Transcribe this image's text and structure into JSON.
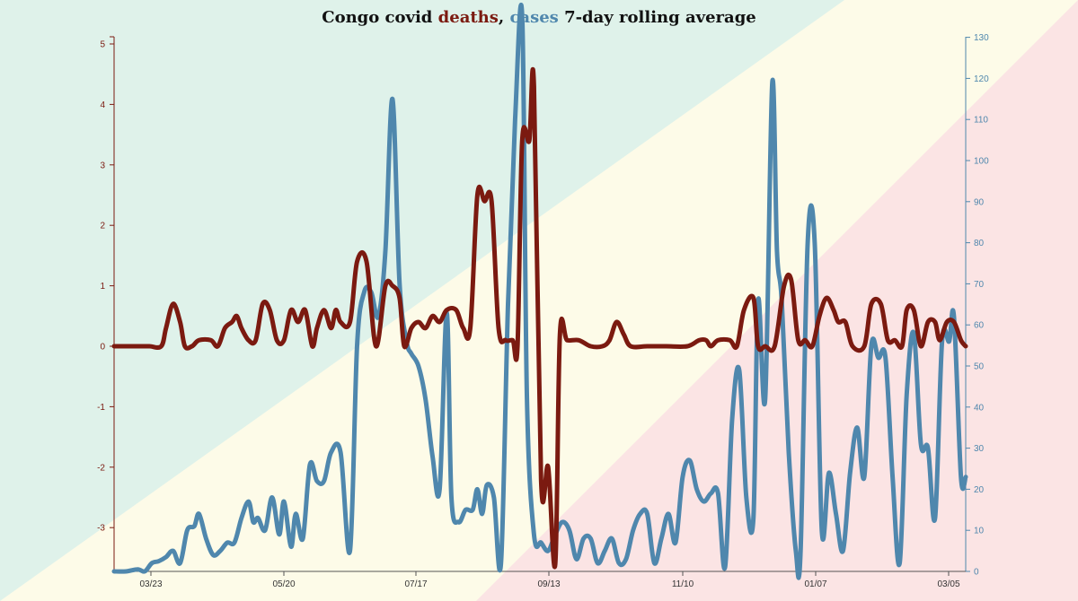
{
  "colors": {
    "deaths": "#7b1a10",
    "cases": "#4f87ad",
    "title": "#111111",
    "bg_green": "#dff2ea",
    "bg_yellow": "#fdfbe8",
    "bg_pink": "#fbe4e4"
  },
  "chart_data": {
    "type": "line",
    "title_parts": [
      {
        "text": "Congo covid ",
        "color": "#111111"
      },
      {
        "text": "deaths",
        "color": "#7b1a10"
      },
      {
        "text": ", ",
        "color": "#111111"
      },
      {
        "text": "cases",
        "color": "#4f87ad"
      },
      {
        "text": " 7-day rolling average",
        "color": "#111111"
      }
    ],
    "x_ticks": [
      "03/23",
      "05/20",
      "07/17",
      "09/13",
      "11/10",
      "01/07",
      "03/05"
    ],
    "x_range": [
      "2020-03-12",
      "2021-03-08"
    ],
    "y_left": {
      "range": [
        -3.75,
        5.1
      ],
      "ticks": [
        "-3",
        "-2",
        "-1",
        "0",
        "1",
        "2",
        "3",
        "4",
        "5"
      ]
    },
    "y_right": {
      "range": [
        0,
        130
      ],
      "ticks": [
        "0",
        "10",
        "20",
        "30",
        "40",
        "50",
        "60",
        "70",
        "80",
        "90",
        "100",
        "110",
        "120",
        "130"
      ]
    },
    "series": [
      {
        "name": "deaths",
        "axis": "left",
        "color": "#7b1a10",
        "points": [
          [
            "2020-03-12",
            0
          ],
          [
            "2020-03-17",
            0
          ],
          [
            "2020-03-22",
            0
          ],
          [
            "2020-03-27",
            0
          ],
          [
            "2020-04-01",
            0
          ],
          [
            "2020-04-03",
            0.3
          ],
          [
            "2020-04-06",
            0.7
          ],
          [
            "2020-04-09",
            0.4
          ],
          [
            "2020-04-11",
            0
          ],
          [
            "2020-04-14",
            0
          ],
          [
            "2020-04-17",
            0.1
          ],
          [
            "2020-04-22",
            0.1
          ],
          [
            "2020-04-25",
            0
          ],
          [
            "2020-04-28",
            0.3
          ],
          [
            "2020-05-01",
            0.4
          ],
          [
            "2020-05-03",
            0.5
          ],
          [
            "2020-05-05",
            0.3
          ],
          [
            "2020-05-08",
            0.1
          ],
          [
            "2020-05-11",
            0.1
          ],
          [
            "2020-05-14",
            0.7
          ],
          [
            "2020-05-17",
            0.6
          ],
          [
            "2020-05-20",
            0.1
          ],
          [
            "2020-05-23",
            0.1
          ],
          [
            "2020-05-26",
            0.6
          ],
          [
            "2020-05-29",
            0.4
          ],
          [
            "2020-06-01",
            0.6
          ],
          [
            "2020-06-04",
            0
          ],
          [
            "2020-06-06",
            0.3
          ],
          [
            "2020-06-09",
            0.6
          ],
          [
            "2020-06-12",
            0.3
          ],
          [
            "2020-06-14",
            0.6
          ],
          [
            "2020-06-16",
            0.4
          ],
          [
            "2020-06-20",
            0.4
          ],
          [
            "2020-06-23",
            1.4
          ],
          [
            "2020-06-27",
            1.4
          ],
          [
            "2020-07-01",
            0
          ],
          [
            "2020-07-05",
            1.0
          ],
          [
            "2020-07-08",
            1.0
          ],
          [
            "2020-07-11",
            0.8
          ],
          [
            "2020-07-13",
            0
          ],
          [
            "2020-07-16",
            0.3
          ],
          [
            "2020-07-19",
            0.4
          ],
          [
            "2020-07-22",
            0.3
          ],
          [
            "2020-07-25",
            0.5
          ],
          [
            "2020-07-28",
            0.4
          ],
          [
            "2020-07-31",
            0.6
          ],
          [
            "2020-08-04",
            0.6
          ],
          [
            "2020-08-07",
            0.3
          ],
          [
            "2020-08-10",
            0.3
          ],
          [
            "2020-08-13",
            2.5
          ],
          [
            "2020-08-16",
            2.4
          ],
          [
            "2020-08-19",
            2.4
          ],
          [
            "2020-08-22",
            0.3
          ],
          [
            "2020-08-25",
            0.1
          ],
          [
            "2020-08-28",
            0.1
          ],
          [
            "2020-08-30",
            0
          ],
          [
            "2020-09-01",
            3.4
          ],
          [
            "2020-09-04",
            3.4
          ],
          [
            "2020-09-06",
            4.3
          ],
          [
            "2020-09-09",
            -2.2
          ],
          [
            "2020-09-12",
            -2.0
          ],
          [
            "2020-09-15",
            -3.6
          ],
          [
            "2020-09-17",
            0.2
          ],
          [
            "2020-09-20",
            0.1
          ],
          [
            "2020-09-25",
            0.1
          ],
          [
            "2020-09-30",
            0
          ],
          [
            "2020-10-05",
            0
          ],
          [
            "2020-10-08",
            0.1
          ],
          [
            "2020-10-11",
            0.4
          ],
          [
            "2020-10-14",
            0.2
          ],
          [
            "2020-10-17",
            0
          ],
          [
            "2020-10-24",
            0
          ],
          [
            "2020-11-01",
            0
          ],
          [
            "2020-11-10",
            0
          ],
          [
            "2020-11-15",
            0.1
          ],
          [
            "2020-11-18",
            0.1
          ],
          [
            "2020-11-20",
            0
          ],
          [
            "2020-11-23",
            0.1
          ],
          [
            "2020-11-28",
            0.1
          ],
          [
            "2020-12-01",
            0
          ],
          [
            "2020-12-04",
            0.6
          ],
          [
            "2020-12-08",
            0.8
          ],
          [
            "2020-12-10",
            0
          ],
          [
            "2020-12-13",
            0
          ],
          [
            "2020-12-17",
            0
          ],
          [
            "2020-12-21",
            1.0
          ],
          [
            "2020-12-24",
            1.1
          ],
          [
            "2020-12-27",
            0.1
          ],
          [
            "2020-12-30",
            0.1
          ],
          [
            "2021-01-02",
            0
          ],
          [
            "2021-01-05",
            0.5
          ],
          [
            "2021-01-08",
            0.8
          ],
          [
            "2021-01-11",
            0.6
          ],
          [
            "2021-01-13",
            0.4
          ],
          [
            "2021-01-16",
            0.4
          ],
          [
            "2021-01-19",
            0
          ],
          [
            "2021-01-24",
            0
          ],
          [
            "2021-01-27",
            0.7
          ],
          [
            "2021-01-31",
            0.7
          ],
          [
            "2021-02-03",
            0.1
          ],
          [
            "2021-02-06",
            0.1
          ],
          [
            "2021-02-09",
            0
          ],
          [
            "2021-02-11",
            0.6
          ],
          [
            "2021-02-14",
            0.6
          ],
          [
            "2021-02-17",
            0
          ],
          [
            "2021-02-20",
            0.4
          ],
          [
            "2021-02-23",
            0.4
          ],
          [
            "2021-02-25",
            0.1
          ],
          [
            "2021-02-28",
            0.4
          ],
          [
            "2021-03-03",
            0.4
          ],
          [
            "2021-03-06",
            0.1
          ],
          [
            "2021-03-08",
            0
          ]
        ]
      },
      {
        "name": "cases",
        "axis": "right",
        "color": "#4f87ad",
        "points": [
          [
            "2020-03-12",
            0
          ],
          [
            "2020-03-17",
            0
          ],
          [
            "2020-03-22",
            0.5
          ],
          [
            "2020-03-25",
            0
          ],
          [
            "2020-03-28",
            2
          ],
          [
            "2020-03-31",
            2.5
          ],
          [
            "2020-04-03",
            3.5
          ],
          [
            "2020-04-06",
            5
          ],
          [
            "2020-04-09",
            2
          ],
          [
            "2020-04-12",
            10
          ],
          [
            "2020-04-15",
            11
          ],
          [
            "2020-04-17",
            14
          ],
          [
            "2020-04-20",
            8
          ],
          [
            "2020-04-23",
            4
          ],
          [
            "2020-04-26",
            5
          ],
          [
            "2020-04-29",
            7
          ],
          [
            "2020-05-02",
            7
          ],
          [
            "2020-05-05",
            13
          ],
          [
            "2020-05-08",
            17
          ],
          [
            "2020-05-10",
            12
          ],
          [
            "2020-05-12",
            13
          ],
          [
            "2020-05-15",
            10
          ],
          [
            "2020-05-18",
            18
          ],
          [
            "2020-05-21",
            9
          ],
          [
            "2020-05-23",
            17
          ],
          [
            "2020-05-26",
            6
          ],
          [
            "2020-05-28",
            14
          ],
          [
            "2020-05-31",
            8
          ],
          [
            "2020-06-03",
            26
          ],
          [
            "2020-06-06",
            22
          ],
          [
            "2020-06-09",
            22
          ],
          [
            "2020-06-12",
            29
          ],
          [
            "2020-06-16",
            29
          ],
          [
            "2020-06-20",
            5
          ],
          [
            "2020-06-23",
            55
          ],
          [
            "2020-06-26",
            68
          ],
          [
            "2020-06-29",
            68
          ],
          [
            "2020-07-02",
            62
          ],
          [
            "2020-07-05",
            78
          ],
          [
            "2020-07-08",
            115
          ],
          [
            "2020-07-11",
            70
          ],
          [
            "2020-07-14",
            56
          ],
          [
            "2020-07-16",
            53
          ],
          [
            "2020-07-19",
            50
          ],
          [
            "2020-07-22",
            42
          ],
          [
            "2020-07-25",
            28
          ],
          [
            "2020-07-28",
            20
          ],
          [
            "2020-07-31",
            63
          ],
          [
            "2020-08-02",
            18
          ],
          [
            "2020-08-05",
            12
          ],
          [
            "2020-08-08",
            15
          ],
          [
            "2020-08-11",
            15
          ],
          [
            "2020-08-13",
            20
          ],
          [
            "2020-08-15",
            14
          ],
          [
            "2020-08-17",
            21
          ],
          [
            "2020-08-20",
            18
          ],
          [
            "2020-08-23",
            2
          ],
          [
            "2020-08-26",
            65
          ],
          [
            "2020-08-29",
            110
          ],
          [
            "2020-09-01",
            135
          ],
          [
            "2020-09-03",
            42
          ],
          [
            "2020-09-06",
            9
          ],
          [
            "2020-09-09",
            7
          ],
          [
            "2020-09-12",
            5
          ],
          [
            "2020-09-15",
            9
          ],
          [
            "2020-09-18",
            12
          ],
          [
            "2020-09-21",
            10
          ],
          [
            "2020-09-24",
            3
          ],
          [
            "2020-09-27",
            8
          ],
          [
            "2020-09-30",
            8
          ],
          [
            "2020-10-03",
            2
          ],
          [
            "2020-10-06",
            5
          ],
          [
            "2020-10-09",
            8
          ],
          [
            "2020-10-12",
            2
          ],
          [
            "2020-10-15",
            3
          ],
          [
            "2020-10-18",
            10
          ],
          [
            "2020-10-21",
            14
          ],
          [
            "2020-10-24",
            14
          ],
          [
            "2020-10-27",
            2
          ],
          [
            "2020-10-30",
            8
          ],
          [
            "2020-11-02",
            14
          ],
          [
            "2020-11-05",
            7
          ],
          [
            "2020-11-08",
            23
          ],
          [
            "2020-11-11",
            27
          ],
          [
            "2020-11-14",
            20
          ],
          [
            "2020-11-17",
            17
          ],
          [
            "2020-11-20",
            19
          ],
          [
            "2020-11-23",
            19
          ],
          [
            "2020-11-26",
            1
          ],
          [
            "2020-11-29",
            37
          ],
          [
            "2020-12-02",
            49
          ],
          [
            "2020-12-05",
            18
          ],
          [
            "2020-12-08",
            13
          ],
          [
            "2020-12-10",
            66
          ],
          [
            "2020-12-13",
            42
          ],
          [
            "2020-12-16",
            119
          ],
          [
            "2020-12-18",
            78
          ],
          [
            "2020-12-20",
            66
          ],
          [
            "2020-12-23",
            29
          ],
          [
            "2020-12-26",
            5
          ],
          [
            "2020-12-28",
            5
          ],
          [
            "2020-12-31",
            80
          ],
          [
            "2021-01-03",
            80
          ],
          [
            "2021-01-06",
            10
          ],
          [
            "2021-01-09",
            24
          ],
          [
            "2021-01-12",
            14
          ],
          [
            "2021-01-15",
            5
          ],
          [
            "2021-01-18",
            24
          ],
          [
            "2021-01-21",
            35
          ],
          [
            "2021-01-24",
            23
          ],
          [
            "2021-01-27",
            55
          ],
          [
            "2021-01-30",
            52
          ],
          [
            "2021-02-02",
            52
          ],
          [
            "2021-02-05",
            23
          ],
          [
            "2021-02-08",
            2
          ],
          [
            "2021-02-11",
            43
          ],
          [
            "2021-02-14",
            58
          ],
          [
            "2021-02-17",
            31
          ],
          [
            "2021-02-20",
            30
          ],
          [
            "2021-02-23",
            13
          ],
          [
            "2021-02-26",
            56
          ],
          [
            "2021-03-01",
            56
          ],
          [
            "2021-03-03",
            62
          ],
          [
            "2021-03-06",
            23
          ],
          [
            "2021-03-08",
            23
          ]
        ]
      }
    ],
    "legend": "none",
    "grid": false
  }
}
